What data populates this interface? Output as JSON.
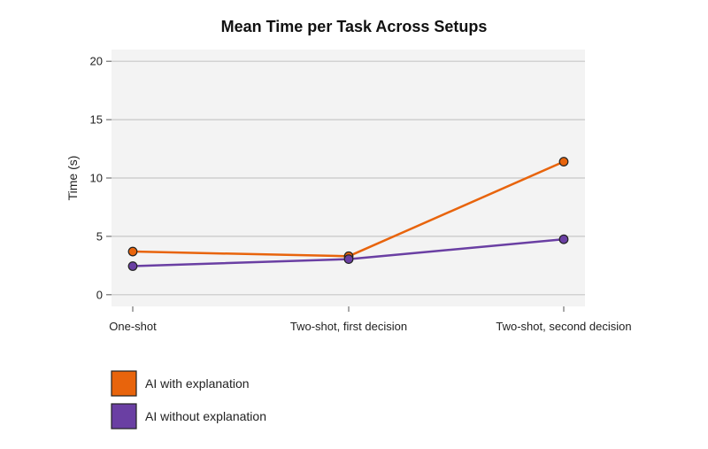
{
  "chart_data": {
    "type": "line",
    "title": "Mean Time per Task Across Setups",
    "xlabel": "",
    "ylabel": "Time (s)",
    "categories": [
      "One-shot",
      "Two-shot, first decision",
      "Two-shot, second decision"
    ],
    "ylim": [
      -1,
      21
    ],
    "yticks": [
      0,
      5,
      10,
      15,
      20
    ],
    "grid": true,
    "legend_position": "bottom-left",
    "series": [
      {
        "name": "AI with explanation",
        "color": "#e8640c",
        "values": [
          3.7,
          3.3,
          11.4
        ]
      },
      {
        "name": "AI without explanation",
        "color": "#6a3fa3",
        "values": [
          2.45,
          3.05,
          4.75
        ]
      }
    ]
  }
}
